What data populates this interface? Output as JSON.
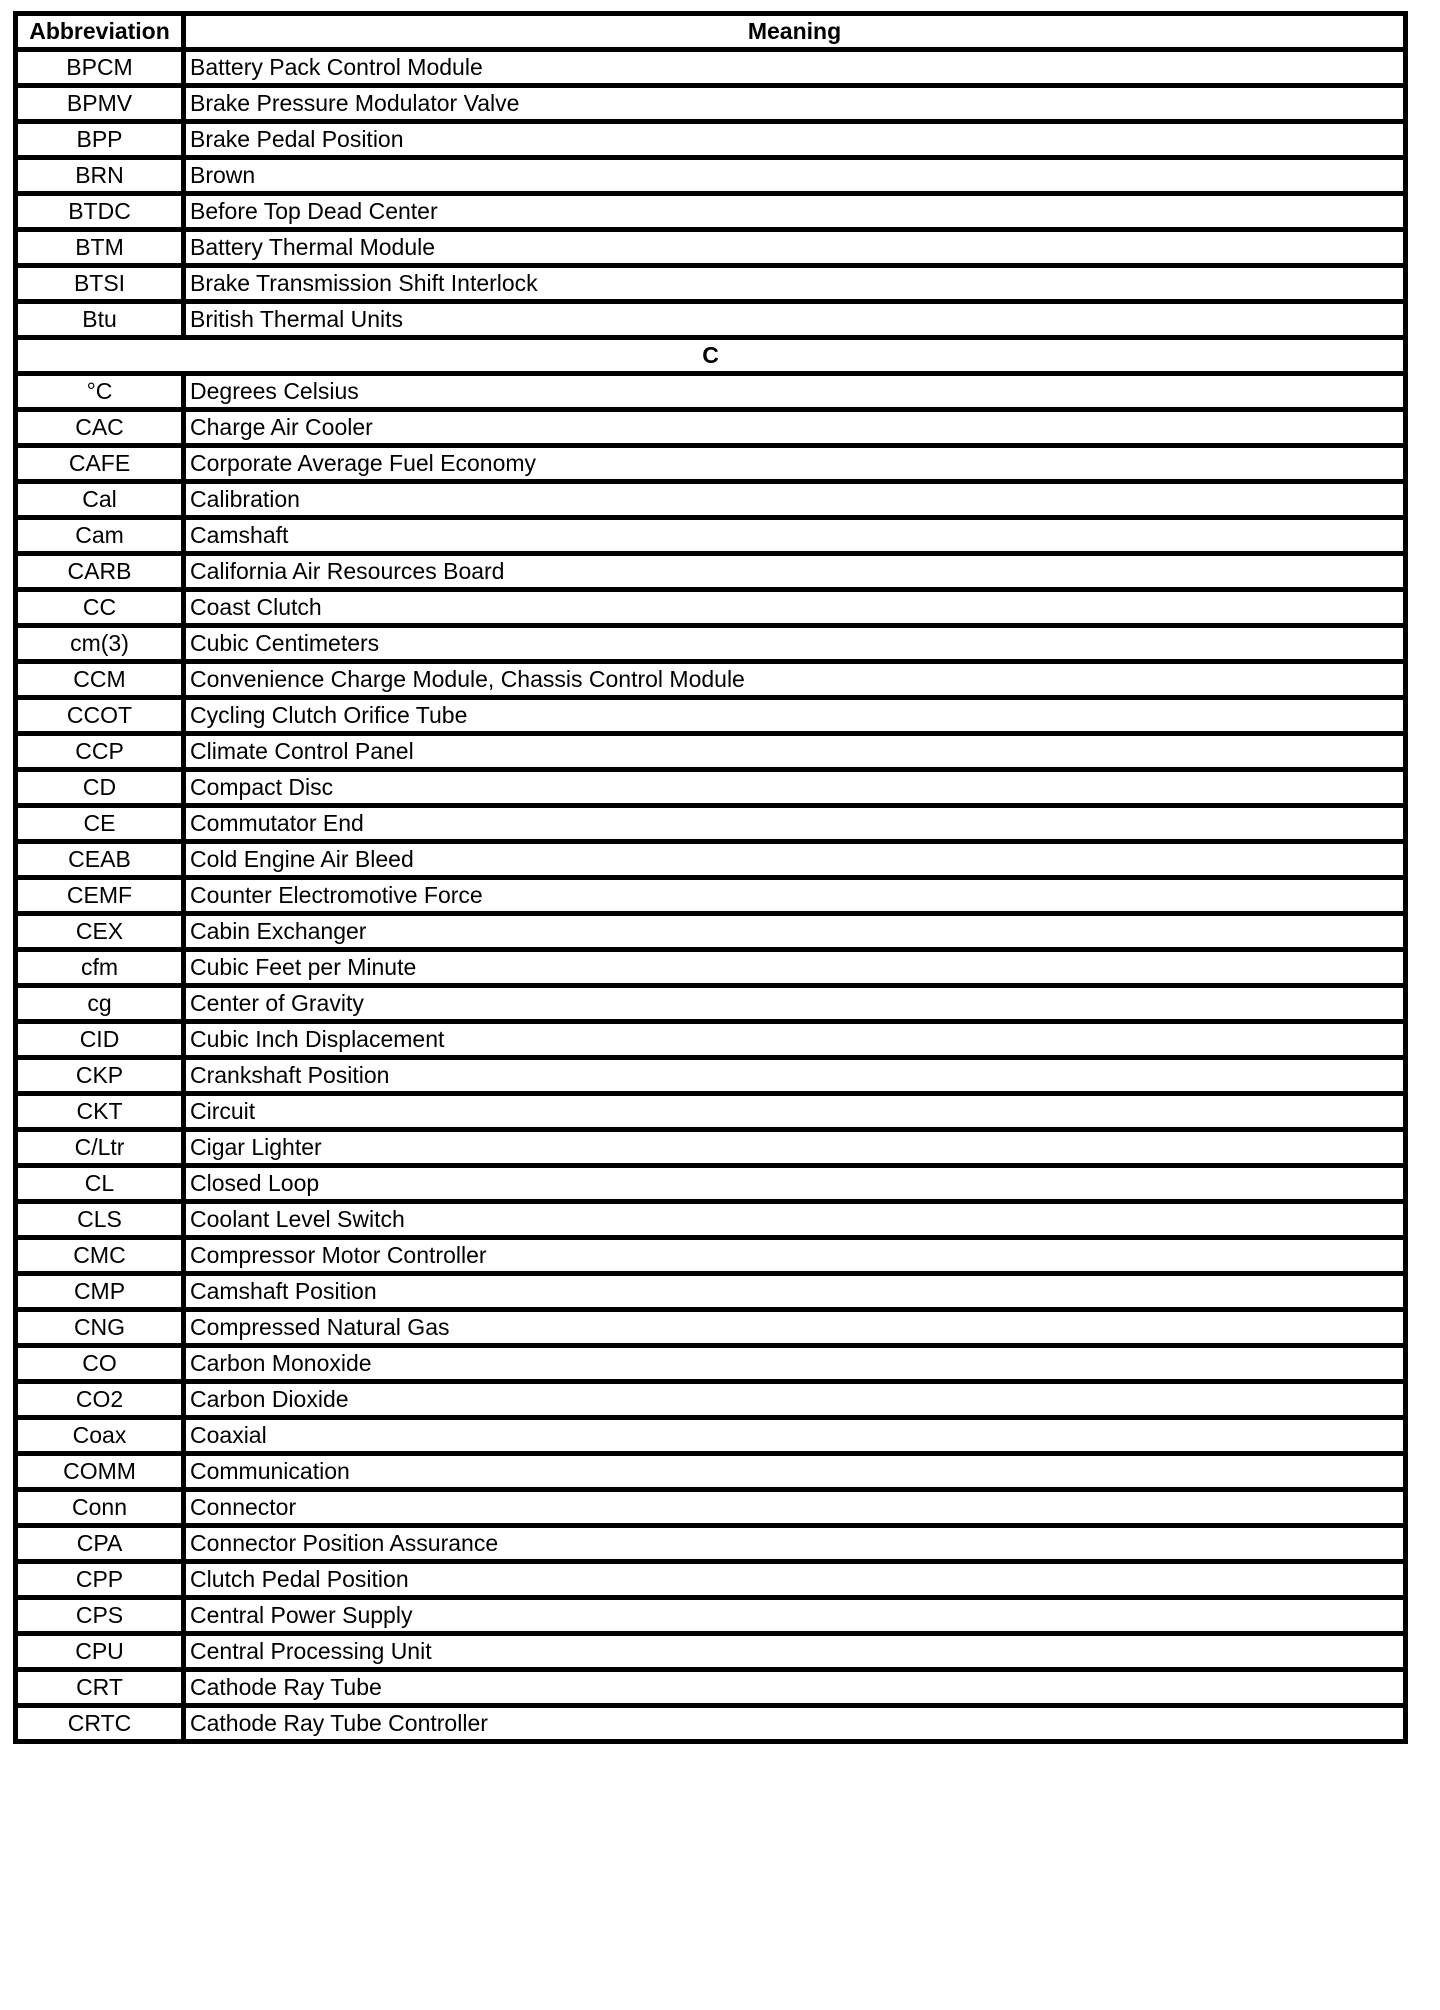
{
  "table": {
    "headers": {
      "abbreviation": "Abbreviation",
      "meaning": "Meaning"
    },
    "rows": [
      {
        "abbr": "BPCM",
        "meaning": "Battery Pack Control Module"
      },
      {
        "abbr": "BPMV",
        "meaning": "Brake Pressure Modulator Valve"
      },
      {
        "abbr": "BPP",
        "meaning": "Brake Pedal Position"
      },
      {
        "abbr": "BRN",
        "meaning": "Brown"
      },
      {
        "abbr": "BTDC",
        "meaning": "Before Top Dead Center"
      },
      {
        "abbr": "BTM",
        "meaning": "Battery Thermal Module"
      },
      {
        "abbr": "BTSI",
        "meaning": "Brake Transmission Shift Interlock"
      },
      {
        "abbr": "Btu",
        "meaning": "British Thermal Units"
      },
      {
        "section": "C"
      },
      {
        "abbr": "°C",
        "meaning": "Degrees Celsius"
      },
      {
        "abbr": "CAC",
        "meaning": "Charge Air Cooler"
      },
      {
        "abbr": "CAFE",
        "meaning": "Corporate Average Fuel Economy"
      },
      {
        "abbr": "Cal",
        "meaning": "Calibration"
      },
      {
        "abbr": "Cam",
        "meaning": "Camshaft"
      },
      {
        "abbr": "CARB",
        "meaning": "California Air Resources Board"
      },
      {
        "abbr": "CC",
        "meaning": "Coast Clutch"
      },
      {
        "abbr": "cm(3)",
        "meaning": "Cubic Centimeters"
      },
      {
        "abbr": "CCM",
        "meaning": "Convenience Charge Module, Chassis Control Module"
      },
      {
        "abbr": "CCOT",
        "meaning": "Cycling Clutch Orifice Tube"
      },
      {
        "abbr": "CCP",
        "meaning": "Climate Control Panel"
      },
      {
        "abbr": "CD",
        "meaning": "Compact Disc"
      },
      {
        "abbr": "CE",
        "meaning": "Commutator End"
      },
      {
        "abbr": "CEAB",
        "meaning": "Cold Engine Air Bleed"
      },
      {
        "abbr": "CEMF",
        "meaning": "Counter Electromotive Force"
      },
      {
        "abbr": "CEX",
        "meaning": "Cabin Exchanger"
      },
      {
        "abbr": "cfm",
        "meaning": "Cubic Feet per Minute"
      },
      {
        "abbr": "cg",
        "meaning": "Center of Gravity"
      },
      {
        "abbr": "CID",
        "meaning": "Cubic Inch Displacement"
      },
      {
        "abbr": "CKP",
        "meaning": "Crankshaft Position"
      },
      {
        "abbr": "CKT",
        "meaning": "Circuit"
      },
      {
        "abbr": "C/Ltr",
        "meaning": "Cigar Lighter"
      },
      {
        "abbr": "CL",
        "meaning": "Closed Loop"
      },
      {
        "abbr": "CLS",
        "meaning": "Coolant Level Switch"
      },
      {
        "abbr": "CMC",
        "meaning": "Compressor Motor Controller"
      },
      {
        "abbr": "CMP",
        "meaning": "Camshaft Position"
      },
      {
        "abbr": "CNG",
        "meaning": "Compressed Natural Gas"
      },
      {
        "abbr": "CO",
        "meaning": "Carbon Monoxide"
      },
      {
        "abbr": "CO2",
        "meaning": "Carbon Dioxide"
      },
      {
        "abbr": "Coax",
        "meaning": "Coaxial"
      },
      {
        "abbr": "COMM",
        "meaning": "Communication"
      },
      {
        "abbr": "Conn",
        "meaning": "Connector"
      },
      {
        "abbr": "CPA",
        "meaning": "Connector Position Assurance"
      },
      {
        "abbr": "CPP",
        "meaning": "Clutch Pedal Position"
      },
      {
        "abbr": "CPS",
        "meaning": "Central Power Supply"
      },
      {
        "abbr": "CPU",
        "meaning": "Central Processing Unit"
      },
      {
        "abbr": "CRT",
        "meaning": "Cathode Ray Tube"
      },
      {
        "abbr": "CRTC",
        "meaning": "Cathode Ray Tube Controller"
      }
    ]
  }
}
